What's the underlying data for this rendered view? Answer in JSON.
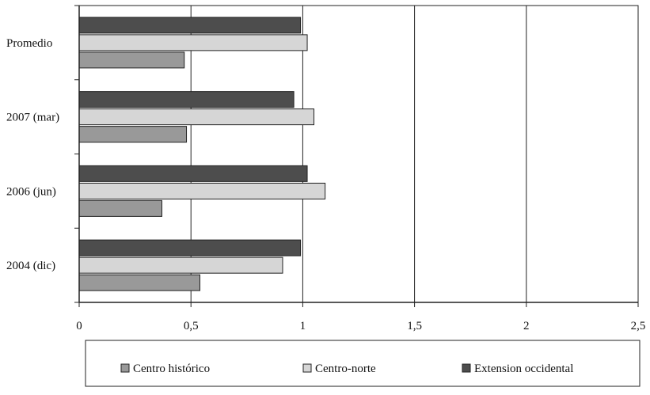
{
  "chart_data": {
    "type": "bar",
    "orientation": "horizontal",
    "title": "",
    "xlabel": "",
    "ylabel": "",
    "xlim": [
      0,
      2.5
    ],
    "x_ticks": [
      0,
      0.5,
      1,
      1.5,
      2,
      2.5
    ],
    "x_tick_labels": [
      "0",
      "0,5",
      "1",
      "1,5",
      "2",
      "2,5"
    ],
    "grid": "vertical",
    "legend_position": "bottom",
    "categories": [
      "2004 (dic)",
      "2006 (jun)",
      "2007 (mar)",
      "Promedio"
    ],
    "series": [
      {
        "name": "Centro histórico",
        "color": "#999999",
        "values": [
          0.54,
          0.37,
          0.48,
          0.47
        ]
      },
      {
        "name": "Centro-norte",
        "color": "#d6d6d6",
        "values": [
          0.91,
          1.1,
          1.05,
          1.02
        ]
      },
      {
        "name": "Extension occidental",
        "color": "#4d4d4d",
        "values": [
          0.99,
          1.02,
          0.96,
          0.99
        ]
      }
    ]
  }
}
